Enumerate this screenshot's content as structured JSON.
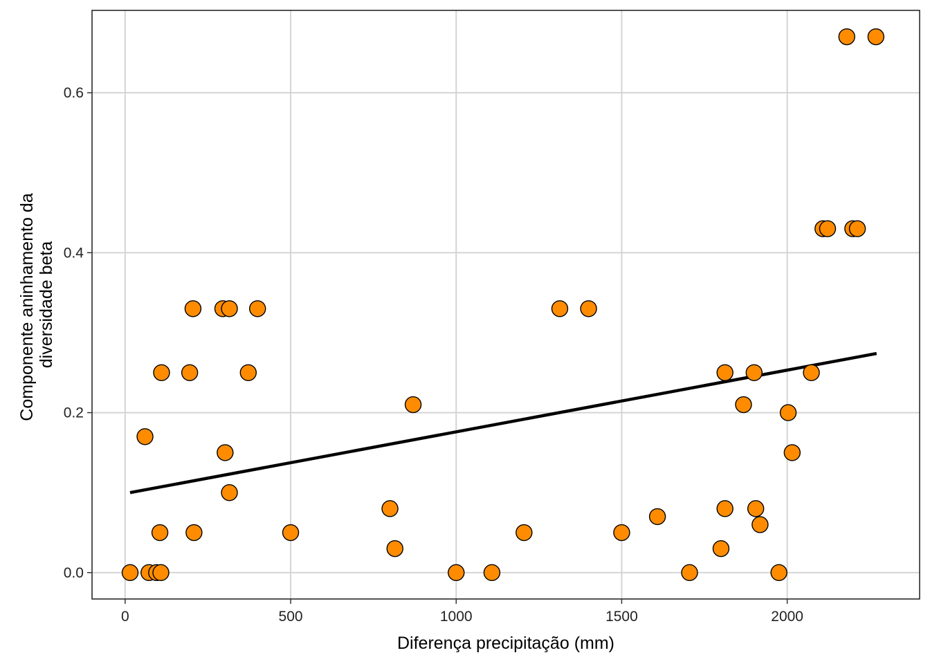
{
  "chart_data": {
    "type": "scatter",
    "title": "",
    "xlabel": "Diferença precipitação (mm)",
    "ylabel_lines": [
      "Componente aninhamento da",
      "diversidade beta"
    ],
    "xlim": [
      -100,
      2400
    ],
    "ylim": [
      -0.033,
      0.703
    ],
    "x_ticks": [
      0,
      500,
      1000,
      1500,
      2000
    ],
    "x_tick_labels": [
      "0",
      "500",
      "1000",
      "1500",
      "2000"
    ],
    "y_ticks": [
      0.0,
      0.2,
      0.4,
      0.6
    ],
    "y_tick_labels": [
      "0.0",
      "0.2",
      "0.4",
      "0.6"
    ],
    "grid": true,
    "point_color": "#ff8c00",
    "point_stroke": "#000000",
    "line_color": "#000000",
    "trend_line": {
      "x": [
        15,
        2270
      ],
      "y": [
        0.1,
        0.274
      ]
    },
    "points": [
      {
        "x": 15,
        "y": 0.0
      },
      {
        "x": 60,
        "y": 0.17
      },
      {
        "x": 72,
        "y": 0.0
      },
      {
        "x": 95,
        "y": 0.0
      },
      {
        "x": 105,
        "y": 0.05
      },
      {
        "x": 108,
        "y": 0.0
      },
      {
        "x": 110,
        "y": 0.25
      },
      {
        "x": 195,
        "y": 0.25
      },
      {
        "x": 205,
        "y": 0.33
      },
      {
        "x": 208,
        "y": 0.05
      },
      {
        "x": 295,
        "y": 0.33
      },
      {
        "x": 302,
        "y": 0.15
      },
      {
        "x": 315,
        "y": 0.33
      },
      {
        "x": 315,
        "y": 0.1
      },
      {
        "x": 372,
        "y": 0.25
      },
      {
        "x": 400,
        "y": 0.33
      },
      {
        "x": 500,
        "y": 0.05
      },
      {
        "x": 800,
        "y": 0.08
      },
      {
        "x": 815,
        "y": 0.03
      },
      {
        "x": 870,
        "y": 0.21
      },
      {
        "x": 1000,
        "y": 0.0
      },
      {
        "x": 1108,
        "y": 0.0
      },
      {
        "x": 1205,
        "y": 0.05
      },
      {
        "x": 1313,
        "y": 0.33
      },
      {
        "x": 1400,
        "y": 0.33
      },
      {
        "x": 1500,
        "y": 0.05
      },
      {
        "x": 1608,
        "y": 0.07
      },
      {
        "x": 1705,
        "y": 0.0
      },
      {
        "x": 1800,
        "y": 0.03
      },
      {
        "x": 1812,
        "y": 0.25
      },
      {
        "x": 1812,
        "y": 0.08
      },
      {
        "x": 1868,
        "y": 0.21
      },
      {
        "x": 1900,
        "y": 0.25
      },
      {
        "x": 1905,
        "y": 0.08
      },
      {
        "x": 1918,
        "y": 0.06
      },
      {
        "x": 1975,
        "y": 0.0
      },
      {
        "x": 2003,
        "y": 0.2
      },
      {
        "x": 2015,
        "y": 0.15
      },
      {
        "x": 2073,
        "y": 0.25
      },
      {
        "x": 2108,
        "y": 0.43
      },
      {
        "x": 2122,
        "y": 0.43
      },
      {
        "x": 2180,
        "y": 0.67
      },
      {
        "x": 2198,
        "y": 0.43
      },
      {
        "x": 2212,
        "y": 0.43
      },
      {
        "x": 2268,
        "y": 0.67
      }
    ]
  }
}
